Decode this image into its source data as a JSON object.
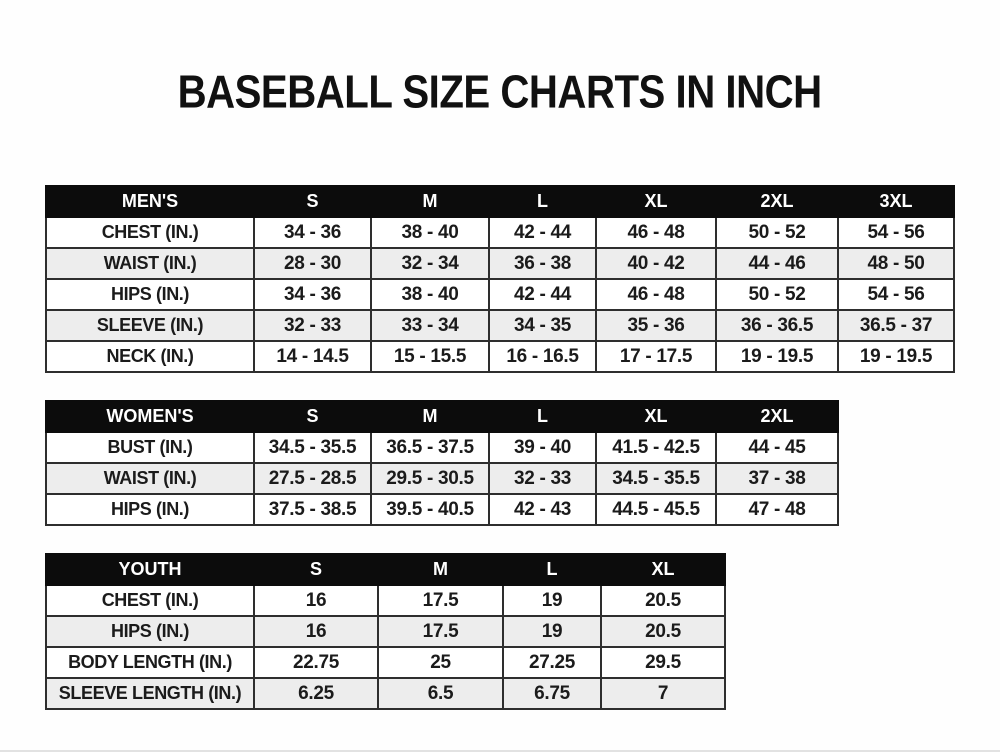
{
  "page": {
    "title": "BASEBALL SIZE CHARTS IN INCH"
  },
  "tables": [
    {
      "name": "mens",
      "header": [
        "MEN'S",
        "S",
        "M",
        "L",
        "XL",
        "2XL",
        "3XL"
      ],
      "rows": [
        {
          "label": "CHEST (IN.)",
          "values": [
            "34 - 36",
            "38 - 40",
            "42 - 44",
            "46 - 48",
            "50 - 52",
            "54 - 56"
          ]
        },
        {
          "label": "WAIST (IN.)",
          "values": [
            "28 - 30",
            "32 - 34",
            "36 - 38",
            "40 - 42",
            "44 - 46",
            "48 - 50"
          ]
        },
        {
          "label": "HIPS (IN.)",
          "values": [
            "34 - 36",
            "38 - 40",
            "42 - 44",
            "46 - 48",
            "50 - 52",
            "54 - 56"
          ]
        },
        {
          "label": "SLEEVE (IN.)",
          "values": [
            "32 - 33",
            "33 - 34",
            "34 - 35",
            "35 - 36",
            "36 - 36.5",
            "36.5 - 37"
          ]
        },
        {
          "label": "NECK (IN.)",
          "values": [
            "14 - 14.5",
            "15 - 15.5",
            "16 - 16.5",
            "17 - 17.5",
            "19 - 19.5",
            "19 - 19.5"
          ]
        }
      ]
    },
    {
      "name": "womens",
      "header": [
        "WOMEN'S",
        "S",
        "M",
        "L",
        "XL",
        "2XL"
      ],
      "rows": [
        {
          "label": "BUST (IN.)",
          "values": [
            "34.5 - 35.5",
            "36.5 - 37.5",
            "39 - 40",
            "41.5 - 42.5",
            "44 - 45"
          ]
        },
        {
          "label": "WAIST (IN.)",
          "values": [
            "27.5 - 28.5",
            "29.5 - 30.5",
            "32 - 33",
            "34.5 - 35.5",
            "37 - 38"
          ]
        },
        {
          "label": "HIPS (IN.)",
          "values": [
            "37.5 - 38.5",
            "39.5 - 40.5",
            "42 - 43",
            "44.5 - 45.5",
            "47 - 48"
          ]
        }
      ]
    },
    {
      "name": "youth",
      "header": [
        "YOUTH",
        "S",
        "M",
        "L",
        "XL"
      ],
      "rows": [
        {
          "label": "CHEST (IN.)",
          "values": [
            "16",
            "17.5",
            "19",
            "20.5"
          ]
        },
        {
          "label": "HIPS (IN.)",
          "values": [
            "16",
            "17.5",
            "19",
            "20.5"
          ]
        },
        {
          "label": "BODY LENGTH (IN.)",
          "values": [
            "22.75",
            "25",
            "27.25",
            "29.5"
          ]
        },
        {
          "label": "SLEEVE LENGTH (IN.)",
          "values": [
            "6.25",
            "6.5",
            "6.75",
            "7"
          ]
        }
      ]
    }
  ],
  "colors": {
    "header_bg": "#0c0c0c",
    "header_text": "#ffffff",
    "row_alt_bg": "#ededed",
    "border": "#2e2e2e",
    "text": "#1b1b1b"
  }
}
